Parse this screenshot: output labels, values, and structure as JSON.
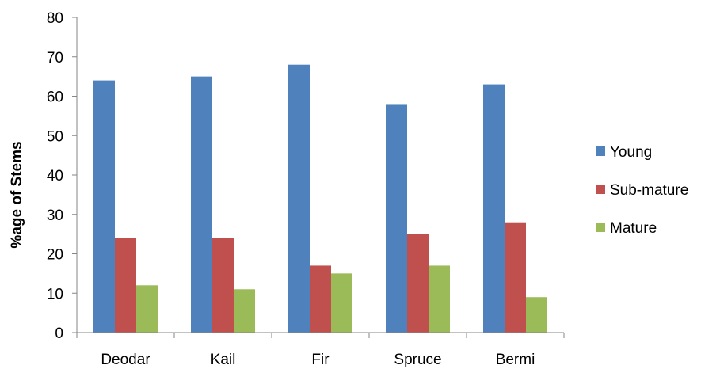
{
  "chart_data": {
    "type": "bar",
    "title": "",
    "xlabel": "",
    "ylabel": "%age of Stems",
    "ylim": [
      0,
      80
    ],
    "yticks": [
      0,
      10,
      20,
      30,
      40,
      50,
      60,
      70,
      80
    ],
    "grid": false,
    "legend_position": "right",
    "categories": [
      "Deodar",
      "Kail",
      "Fir",
      "Spruce",
      "Bermi"
    ],
    "series": [
      {
        "name": "Young",
        "color": "#4F81BD",
        "values": [
          64,
          65,
          68,
          58,
          63
        ]
      },
      {
        "name": "Sub-mature",
        "color": "#C0504D",
        "values": [
          24,
          24,
          17,
          25,
          28
        ]
      },
      {
        "name": "Mature",
        "color": "#9BBB59",
        "values": [
          12,
          11,
          15,
          17,
          9
        ]
      }
    ]
  }
}
